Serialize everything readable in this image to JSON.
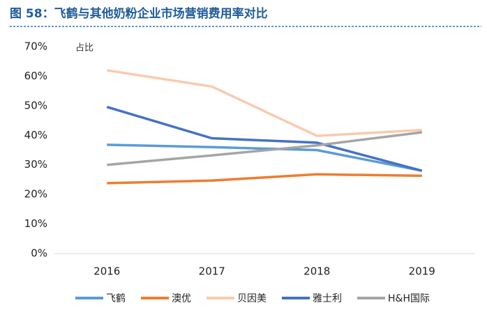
{
  "chart_data": {
    "type": "line",
    "title": "图 58：飞鹤与其他奶粉企业市场营销费用率对比",
    "y_label": "占比",
    "categories": [
      "2016",
      "2017",
      "2018",
      "2019"
    ],
    "series": [
      {
        "name": "飞鹤",
        "color": "#5b9bd5",
        "values": [
          36.8,
          36,
          35,
          28
        ]
      },
      {
        "name": "澳优",
        "color": "#ed7d31",
        "values": [
          23.8,
          24.7,
          26.8,
          26.3
        ]
      },
      {
        "name": "贝因美",
        "color": "#f8cbad",
        "values": [
          62,
          56.5,
          39.8,
          41.8
        ]
      },
      {
        "name": "雅士利",
        "color": "#4472c4",
        "values": [
          49.6,
          39,
          37.5,
          28
        ]
      },
      {
        "name": "H&H国际",
        "color": "#a5a5a5",
        "values": [
          30,
          33.2,
          36.6,
          41
        ]
      }
    ],
    "ylim": [
      0,
      70
    ],
    "yticks": [
      {
        "value": 0,
        "label": "0%"
      },
      {
        "value": 10,
        "label": "10%"
      },
      {
        "value": 20,
        "label": "20%"
      },
      {
        "value": 30,
        "label": "30%"
      },
      {
        "value": 40,
        "label": "40%"
      },
      {
        "value": 50,
        "label": "50%"
      },
      {
        "value": 60,
        "label": "60%"
      },
      {
        "value": 70,
        "label": "70%"
      }
    ],
    "grid": false
  }
}
